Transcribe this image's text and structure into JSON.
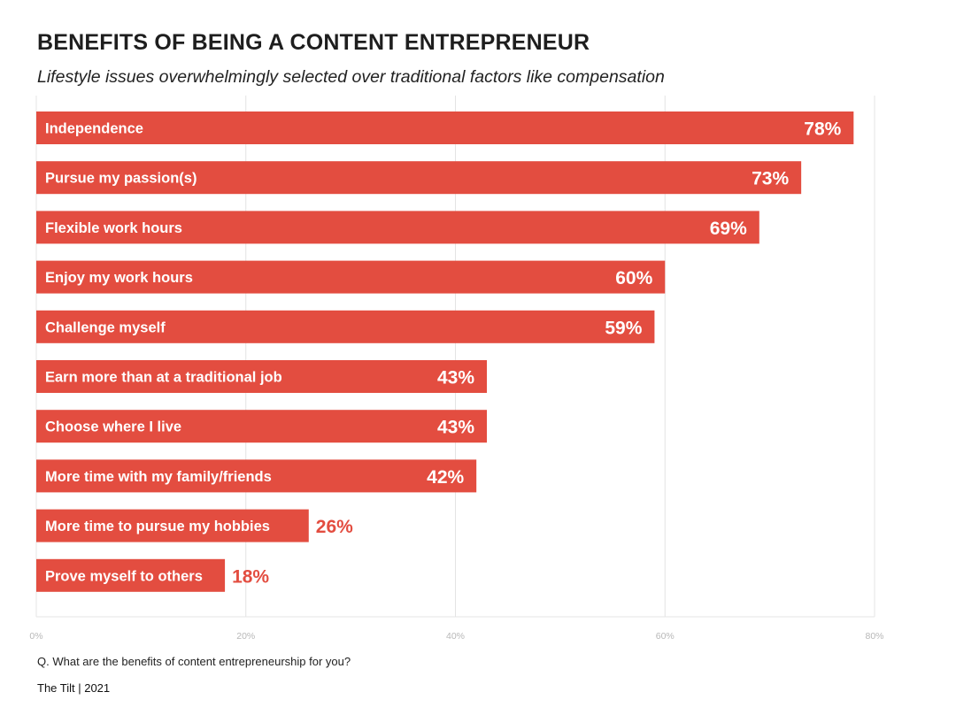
{
  "header": {
    "title": "BENEFITS OF BEING A CONTENT ENTREPRENEUR",
    "subtitle": "Lifestyle issues overwhelmingly selected over traditional factors like compensation"
  },
  "footer": {
    "question": "Q. What are the benefits of content entrepreneurship for you?",
    "source": "The Tilt | 2021"
  },
  "colors": {
    "bar": "#e34d40",
    "label_inside": "#ffffff",
    "label_outside": "#e34d40",
    "grid": "#e4e4e4",
    "tick": "#b8b8b8"
  },
  "chart_data": {
    "type": "bar",
    "orientation": "horizontal",
    "categories": [
      "Independence",
      "Pursue my passion(s)",
      "Flexible work hours",
      "Enjoy my work hours",
      "Challenge myself",
      "Earn more than at a traditional job",
      "Choose where I live",
      "More time with my family/friends",
      "More time to pursue my hobbies",
      "Prove myself to others"
    ],
    "values": [
      78,
      73,
      69,
      60,
      59,
      43,
      43,
      42,
      26,
      18
    ],
    "value_labels": [
      "78%",
      "73%",
      "69%",
      "60%",
      "59%",
      "43%",
      "43%",
      "42%",
      "26%",
      "18%"
    ],
    "xlim": [
      0,
      80
    ],
    "xticks": [
      0,
      20,
      40,
      60,
      80
    ],
    "xtick_labels": [
      "0%",
      "20%",
      "40%",
      "60%",
      "80%"
    ],
    "grid": "vertical",
    "title": "BENEFITS OF BEING A CONTENT ENTREPRENEUR",
    "subtitle": "Lifestyle issues overwhelmingly selected over traditional factors like compensation",
    "xlabel": "",
    "ylabel": ""
  }
}
